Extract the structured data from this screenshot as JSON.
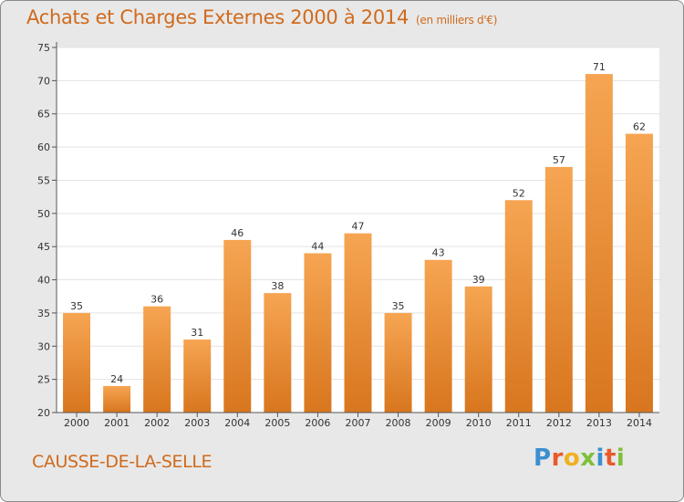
{
  "header": {
    "title": "Achats et Charges Externes 2000 à 2014",
    "unit_note": "(en milliers d'€)"
  },
  "footer": {
    "commune": "CAUSSE-DE-LA-SELLE",
    "logo_letters": [
      "P",
      "r",
      "o",
      "x",
      "i",
      "t",
      "i"
    ]
  },
  "colors": {
    "accent": "#d06a1c",
    "bar_top": "#f6a552",
    "bar_bottom": "#d8761e",
    "background": "#e8e8e8",
    "plot_background": "#ffffff",
    "logo": [
      "#3b8fd0",
      "#e85a2c",
      "#f0b020",
      "#7fbf3a",
      "#3b8fd0",
      "#e85a2c",
      "#7fbf3a"
    ]
  },
  "chart_data": {
    "type": "bar",
    "title": "Achats et Charges Externes 2000 à 2014",
    "subtitle": "(en milliers d'€)",
    "xlabel": "",
    "ylabel": "",
    "categories": [
      "2000",
      "2001",
      "2002",
      "2003",
      "2004",
      "2005",
      "2006",
      "2007",
      "2008",
      "2009",
      "2010",
      "2011",
      "2012",
      "2013",
      "2014"
    ],
    "values": [
      35,
      24,
      36,
      31,
      46,
      38,
      44,
      47,
      35,
      43,
      39,
      52,
      57,
      71,
      62
    ],
    "ylim": [
      20,
      75
    ],
    "yticks": [
      20,
      25,
      30,
      35,
      40,
      45,
      50,
      55,
      60,
      65,
      70,
      75
    ],
    "grid": true,
    "legend": "none"
  }
}
